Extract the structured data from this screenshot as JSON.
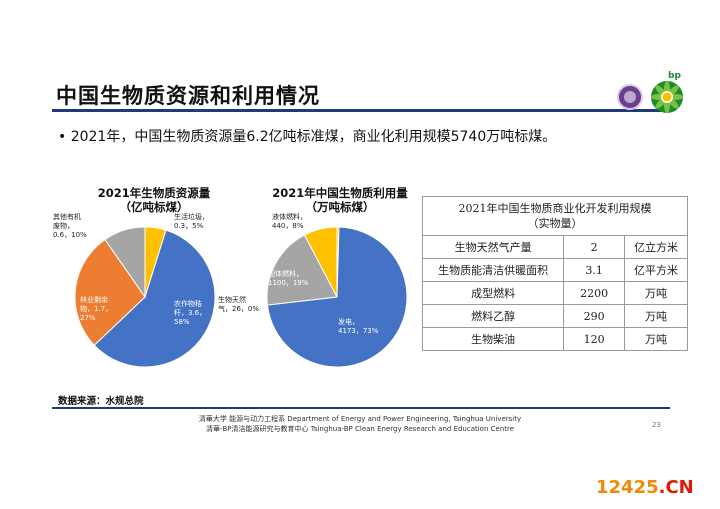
{
  "header": {
    "title": "中国生物质资源和利用情况"
  },
  "logos": {
    "bp_text": "bp",
    "seal_color": "#6a3f8e",
    "bp_green": "#1c8a2e",
    "bp_yellow": "#f5c400"
  },
  "bullet": "• 2021年，中国生物质资源量6.2亿吨标准煤，商业化利用规模5740万吨标煤。",
  "chart_data": [
    {
      "type": "pie",
      "title_line1": "2021年生物质资源量",
      "title_line2": "（亿吨标煤）",
      "slices": [
        {
          "label": "生活垃圾，\n0.3，5%",
          "value": 0.3,
          "percent": 5,
          "color": "#ffc000"
        },
        {
          "label": "农作物秸\n秆，3.6，\n58%",
          "value": 3.6,
          "percent": 58,
          "color": "#4472c4"
        },
        {
          "label": "林业剩余\n物，1.7，\n27%",
          "value": 1.7,
          "percent": 27,
          "color": "#ed7d31"
        },
        {
          "label": "其他有机\n废物，\n0.6，10%",
          "value": 0.6,
          "percent": 10,
          "color": "#a5a5a5"
        }
      ]
    },
    {
      "type": "pie",
      "title_line1": "2021年中国生物质利用量",
      "title_line2": "（万吨标煤）",
      "slices": [
        {
          "label": "生物天然\n气，26，0%",
          "value": 26,
          "percent": 0,
          "color": "#ffc000"
        },
        {
          "label": "发电，\n4173，73%",
          "value": 4173,
          "percent": 73,
          "color": "#4472c4"
        },
        {
          "label": "固体燃料，\n1100，19%",
          "value": 1100,
          "percent": 19,
          "color": "#a5a5a5"
        },
        {
          "label": "液体燃料，\n440，8%",
          "value": 440,
          "percent": 8,
          "color": "#ffc000"
        }
      ]
    }
  ],
  "table": {
    "header_line1": "2021年中国生物质商业化开发利用规模",
    "header_line2": "（实物量）",
    "rows": [
      {
        "name": "生物天然气产量",
        "value": "2",
        "unit": "亿立方米"
      },
      {
        "name": "生物质能清洁供暖面积",
        "value": "3.1",
        "unit": "亿平方米"
      },
      {
        "name": "成型燃料",
        "value": "2200",
        "unit": "万吨"
      },
      {
        "name": "燃料乙醇",
        "value": "290",
        "unit": "万吨"
      },
      {
        "name": "生物柴油",
        "value": "120",
        "unit": "万吨"
      }
    ]
  },
  "source": "数据来源：水规总院",
  "footer": {
    "line1": "清華大学 能源与动力工程系 Department of Energy and Power Engineering, Tsinghua University",
    "line2": "清華-BP清洁能源研究与教育中心 Tsinghua-BP Clean Energy Research and Education Centre",
    "page": "23"
  },
  "watermark": {
    "part1": "12425",
    "part2": ".CN"
  }
}
